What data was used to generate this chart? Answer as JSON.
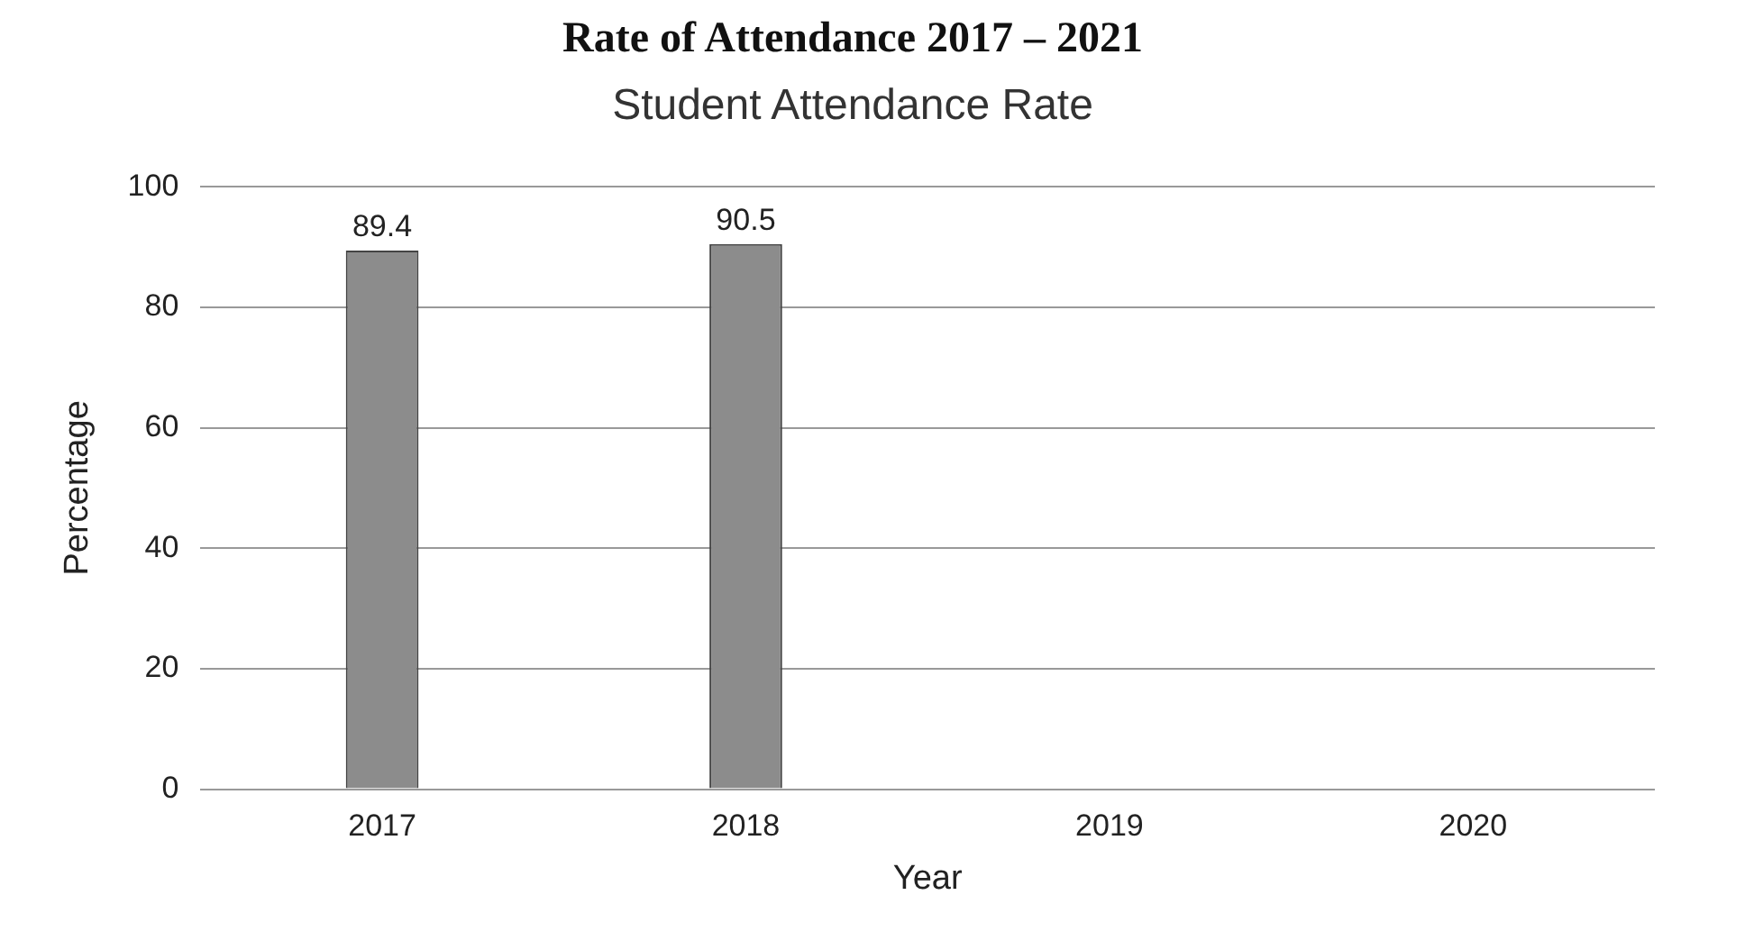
{
  "chart_data": {
    "type": "bar",
    "title": "Rate of Attendance 2017 – 2021",
    "subtitle": "Student Attendance Rate",
    "xlabel": "Year",
    "ylabel": "Percentage",
    "categories": [
      "2017",
      "2018",
      "2019",
      "2020"
    ],
    "values": [
      89.4,
      90.5,
      null,
      null
    ],
    "color": "#8c8c8c",
    "ylim": [
      0,
      100
    ],
    "yticks": [
      0,
      20,
      40,
      60,
      80,
      100
    ],
    "grid": "y",
    "data_labels": true
  }
}
